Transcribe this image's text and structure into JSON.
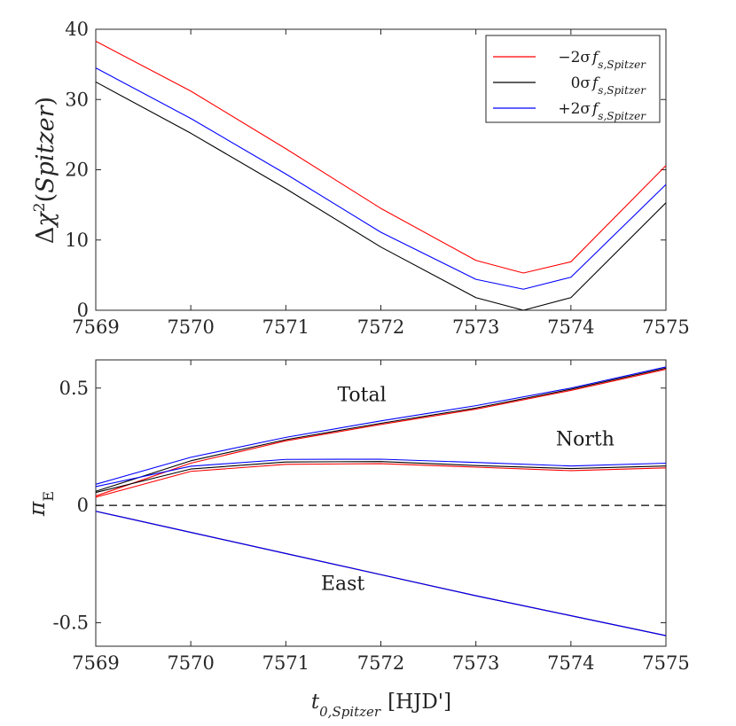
{
  "chart_data": [
    {
      "type": "line",
      "panel": "top",
      "title": "",
      "xlabel": "",
      "ylabel": "Δχ²(Spitzer)",
      "xlim": [
        7569,
        7575
      ],
      "ylim": [
        0,
        40
      ],
      "xticks": [
        7569,
        7570,
        7571,
        7572,
        7573,
        7574,
        7575
      ],
      "yticks": [
        0,
        10,
        20,
        30,
        40
      ],
      "x": [
        7569,
        7570,
        7571,
        7572,
        7573,
        7573.5,
        7574,
        7575
      ],
      "series": [
        {
          "name": "−2σ f_s,Spitzer",
          "color": "#ff0000",
          "values": [
            38.3,
            31.2,
            23.0,
            14.5,
            7.1,
            5.3,
            6.9,
            20.6
          ]
        },
        {
          "name": "0σ f_s,Spitzer",
          "color": "#000000",
          "values": [
            32.5,
            25.2,
            17.3,
            9.0,
            1.8,
            0.0,
            1.8,
            15.3
          ]
        },
        {
          "name": "+2σ f_s,Spitzer",
          "color": "#0000ff",
          "values": [
            34.5,
            27.3,
            19.4,
            11.1,
            4.4,
            3.0,
            4.7,
            17.9
          ]
        }
      ],
      "legend": {
        "placement": "top-right",
        "entries": [
          {
            "prefix": "−2σ",
            "main": "f",
            "sub": "s,Spitzer",
            "color": "#ff0000"
          },
          {
            "prefix": "0σ",
            "main": "f",
            "sub": "s,Spitzer",
            "color": "#000000"
          },
          {
            "prefix": "+2σ",
            "main": "f",
            "sub": "s,Spitzer",
            "color": "#0000ff"
          }
        ]
      }
    },
    {
      "type": "line",
      "panel": "bottom",
      "title": "",
      "xlabel": "t_0,Spitzer [HJD']",
      "ylabel": "π_E",
      "xlim": [
        7569,
        7575
      ],
      "ylim": [
        -0.6,
        0.62
      ],
      "xticks": [
        7569,
        7570,
        7571,
        7572,
        7573,
        7574,
        7575
      ],
      "xtick_labels": [
        "7569",
        "7570",
        "7571",
        "7572",
        "7573",
        "7574",
        "7575"
      ],
      "yticks": [
        -0.5,
        0,
        0.5
      ],
      "ytick_labels": [
        "-0.5",
        "0",
        "0.5"
      ],
      "x": [
        7569,
        7570,
        7571,
        7572,
        7573,
        7574,
        7575
      ],
      "reference_line": {
        "y": 0,
        "style": "dashed"
      },
      "series": [
        {
          "name": "Total (−2σ)",
          "color": "#ff0000",
          "values": [
            0.04,
            0.18,
            0.275,
            0.345,
            0.41,
            0.49,
            0.58
          ]
        },
        {
          "name": "Total (0σ)",
          "color": "#000000",
          "values": [
            0.06,
            0.19,
            0.28,
            0.35,
            0.415,
            0.495,
            0.585
          ]
        },
        {
          "name": "Total (+2σ)",
          "color": "#0000ff",
          "values": [
            0.09,
            0.205,
            0.29,
            0.36,
            0.425,
            0.5,
            0.59
          ]
        },
        {
          "name": "North (−2σ)",
          "color": "#ff0000",
          "values": [
            0.035,
            0.145,
            0.175,
            0.178,
            0.163,
            0.148,
            0.16
          ]
        },
        {
          "name": "North (0σ)",
          "color": "#000000",
          "values": [
            0.055,
            0.155,
            0.185,
            0.187,
            0.17,
            0.157,
            0.168
          ]
        },
        {
          "name": "North (+2σ)",
          "color": "#0000ff",
          "values": [
            0.08,
            0.167,
            0.196,
            0.197,
            0.183,
            0.168,
            0.18
          ]
        },
        {
          "name": "East (−2σ)",
          "color": "#ff0000",
          "values": [
            -0.025,
            -0.115,
            -0.205,
            -0.295,
            -0.385,
            -0.47,
            -0.555
          ]
        },
        {
          "name": "East (0σ)",
          "color": "#000000",
          "values": [
            -0.025,
            -0.115,
            -0.205,
            -0.295,
            -0.385,
            -0.47,
            -0.555
          ]
        },
        {
          "name": "East (+2σ)",
          "color": "#0000ff",
          "values": [
            -0.025,
            -0.115,
            -0.205,
            -0.295,
            -0.385,
            -0.47,
            -0.555
          ]
        }
      ],
      "annotations": [
        {
          "text": "Total",
          "x": 7571.8,
          "y": 0.445
        },
        {
          "text": "North",
          "x": 7574.15,
          "y": 0.255
        },
        {
          "text": "East",
          "x": 7571.6,
          "y": -0.36
        }
      ]
    }
  ]
}
